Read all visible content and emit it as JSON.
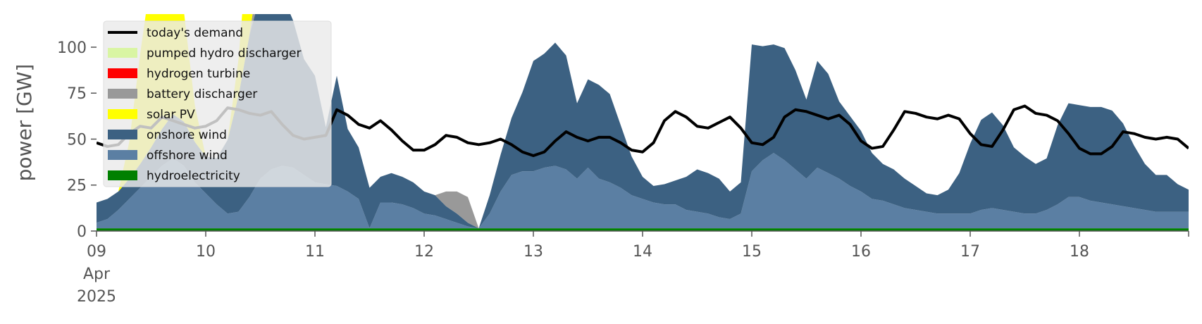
{
  "chart_data": {
    "type": "area",
    "ylabel": "power [GW]",
    "ylim": [
      0,
      118
    ],
    "yticks": [
      0,
      25,
      50,
      75,
      100
    ],
    "xlim": [
      0,
      10
    ],
    "x_ticks": [
      {
        "x": 0,
        "lines": [
          "09",
          "Apr",
          "2025"
        ]
      },
      {
        "x": 1,
        "lines": [
          "10"
        ]
      },
      {
        "x": 2,
        "lines": [
          "11"
        ]
      },
      {
        "x": 3,
        "lines": [
          "12"
        ]
      },
      {
        "x": 4,
        "lines": [
          "13"
        ]
      },
      {
        "x": 5,
        "lines": [
          "14"
        ]
      },
      {
        "x": 6,
        "lines": [
          "15"
        ]
      },
      {
        "x": 7,
        "lines": [
          "16"
        ]
      },
      {
        "x": 8,
        "lines": [
          "17"
        ]
      },
      {
        "x": 9,
        "lines": [
          "18"
        ]
      }
    ],
    "grid": false,
    "legend_position": "top-left",
    "x_days": [
      0,
      0.1,
      0.2,
      0.3,
      0.4,
      0.5,
      0.6,
      0.7,
      0.8,
      0.9,
      1.0,
      1.1,
      1.2,
      1.3,
      1.4,
      1.5,
      1.6,
      1.7,
      1.8,
      1.9,
      2.0,
      2.1,
      2.2,
      2.3,
      2.4,
      2.5,
      2.6,
      2.7,
      2.8,
      2.9,
      3.0,
      3.1,
      3.2,
      3.3,
      3.4,
      3.5,
      3.6,
      3.7,
      3.8,
      3.9,
      4.0,
      4.1,
      4.2,
      4.3,
      4.4,
      4.5,
      4.6,
      4.7,
      4.8,
      4.9,
      5.0,
      5.1,
      5.2,
      5.3,
      5.4,
      5.5,
      5.6,
      5.7,
      5.8,
      5.9,
      6.0,
      6.1,
      6.2,
      6.3,
      6.4,
      6.5,
      6.6,
      6.7,
      6.8,
      6.9,
      7.0,
      7.1,
      7.2,
      7.3,
      7.4,
      7.5,
      7.6,
      7.7,
      7.8,
      7.9,
      8.0,
      8.1,
      8.2,
      8.3,
      8.4,
      8.5,
      8.6,
      8.7,
      8.8,
      8.9,
      9.0,
      9.1,
      9.2,
      9.3,
      9.4,
      9.5,
      9.6,
      9.7,
      9.8,
      9.9,
      10.0
    ],
    "series": [
      {
        "name": "hydroelectricity",
        "color": "#008000",
        "values": [
          1.5,
          1.5,
          1.5,
          1.5,
          1.5,
          1.5,
          1.5,
          1.5,
          1.5,
          1.5,
          1.5,
          1.5,
          1.5,
          1.5,
          1.5,
          1.5,
          1.5,
          1.5,
          1.5,
          1.5,
          1.5,
          1.5,
          1.5,
          1.5,
          1.5,
          1.5,
          1.5,
          1.5,
          1.5,
          1.5,
          1.5,
          1.5,
          1.5,
          1.5,
          1.5,
          1.5,
          1.5,
          1.5,
          1.5,
          1.5,
          1.5,
          1.5,
          1.5,
          1.5,
          1.5,
          1.5,
          1.5,
          1.5,
          1.5,
          1.5,
          1.5,
          1.5,
          1.5,
          1.5,
          1.5,
          1.5,
          1.5,
          1.5,
          1.5,
          1.5,
          1.5,
          1.5,
          1.5,
          1.5,
          1.5,
          1.5,
          1.5,
          1.5,
          1.5,
          1.5,
          1.5,
          1.5,
          1.5,
          1.5,
          1.5,
          1.5,
          1.5,
          1.5,
          1.5,
          1.5,
          1.5,
          1.5,
          1.5,
          1.5,
          1.5,
          1.5,
          1.5,
          1.5,
          1.5,
          1.5,
          1.5,
          1.5,
          1.5,
          1.5,
          1.5,
          1.5,
          1.5,
          1.5,
          1.5,
          1.5,
          1.5
        ]
      },
      {
        "name": "offshore wind",
        "color": "#5b7fa3",
        "values": [
          3,
          5,
          10,
          16,
          22,
          28,
          34,
          38,
          34,
          25,
          19,
          13,
          8,
          9,
          17,
          27,
          32,
          34,
          33,
          29,
          25,
          24,
          23,
          20,
          16,
          0,
          14,
          14,
          13,
          11,
          8,
          7,
          5,
          3,
          1,
          0,
          8,
          20,
          29,
          31,
          31,
          33,
          34,
          32,
          27,
          33,
          27,
          25,
          22,
          18,
          16,
          14,
          13,
          13,
          10,
          9,
          8,
          6,
          5,
          8,
          31,
          37,
          41,
          37,
          32,
          27,
          33,
          30,
          27,
          23,
          20,
          16,
          15,
          13,
          11,
          10,
          9,
          8,
          8,
          8,
          8,
          10,
          11,
          10,
          9,
          8,
          8,
          10,
          13,
          17,
          17,
          15,
          14,
          13,
          12,
          11,
          10,
          9,
          9,
          9,
          9
        ]
      },
      {
        "name": "onshore wind",
        "color": "#3c6182",
        "values": [
          11,
          11,
          10,
          11,
          13,
          16,
          20,
          24,
          24,
          22,
          20,
          25,
          40,
          63,
          88,
          100,
          99,
          93,
          80,
          63,
          58,
          31,
          60,
          34,
          28,
          22,
          14,
          16,
          15,
          14,
          12,
          11,
          7,
          5,
          2,
          0,
          10,
          20,
          31,
          43,
          60,
          62,
          67,
          62,
          41,
          48,
          51,
          48,
          34,
          21,
          12,
          9,
          11,
          13,
          18,
          23,
          22,
          21,
          15,
          17,
          69,
          62,
          59,
          61,
          54,
          43,
          58,
          54,
          42,
          38,
          33,
          25,
          20,
          19,
          16,
          13,
          10,
          10,
          13,
          22,
          38,
          49,
          52,
          46,
          35,
          31,
          27,
          28,
          43,
          51,
          50,
          51,
          52,
          51,
          45,
          34,
          25,
          20,
          20,
          15,
          12
        ]
      },
      {
        "name": "battery discharger",
        "color": "#999999",
        "values": [
          0,
          0,
          0,
          0,
          0,
          0,
          0,
          0,
          0,
          0,
          0,
          0,
          0,
          0,
          0,
          18,
          0,
          0,
          0,
          0,
          0,
          0,
          0,
          0,
          0,
          0,
          0,
          0,
          0,
          0,
          0,
          0,
          8,
          12,
          14,
          0,
          0,
          0,
          0,
          0,
          0,
          0,
          0,
          0,
          0,
          0,
          0,
          0,
          0,
          0,
          0,
          0,
          0,
          0,
          0,
          0,
          0,
          0,
          0,
          0,
          0,
          0,
          0,
          0,
          0,
          0,
          0,
          0,
          0,
          0,
          0,
          0,
          0,
          0,
          0,
          0,
          0,
          0,
          0,
          0,
          0,
          0,
          0,
          0,
          0,
          0,
          0,
          0,
          0,
          0,
          0,
          0,
          0,
          0,
          0,
          0,
          0,
          0,
          0,
          0,
          0
        ]
      },
      {
        "name": "solar PV",
        "color": "#ffff00",
        "values": [
          0,
          0,
          0,
          20,
          60,
          93,
          110,
          98,
          60,
          20,
          0,
          0,
          0,
          20,
          60,
          0,
          0,
          0,
          0,
          0,
          0,
          0,
          0,
          0,
          0,
          0,
          0,
          0,
          0,
          0,
          0,
          0,
          0,
          0,
          0,
          0,
          0,
          0,
          0,
          0,
          0,
          0,
          0,
          0,
          0,
          0,
          0,
          0,
          0,
          0,
          0,
          0,
          0,
          0,
          0,
          0,
          0,
          0,
          0,
          0,
          0,
          0,
          0,
          0,
          0,
          0,
          0,
          0,
          0,
          0,
          0,
          0,
          0,
          0,
          0,
          0,
          0,
          0,
          0,
          0,
          0,
          0,
          0,
          0,
          0,
          0,
          0,
          0,
          0,
          0,
          0,
          0,
          0,
          0,
          0,
          0,
          0,
          0,
          0,
          0,
          0
        ]
      },
      {
        "name": "hydrogen turbine",
        "color": "#ff0000",
        "values": [
          0,
          0,
          0,
          0,
          0,
          0,
          0,
          0,
          0,
          0,
          0,
          0,
          0,
          0,
          0,
          0,
          0,
          0,
          0,
          0,
          0,
          0,
          0,
          0,
          0,
          0,
          0,
          0,
          0,
          0,
          0,
          0,
          0,
          0,
          0,
          0,
          0,
          0,
          0,
          0,
          0,
          0,
          0,
          0,
          0,
          0,
          0,
          0,
          0,
          0,
          0,
          0,
          0,
          0,
          0,
          0,
          0,
          0,
          0,
          0,
          0,
          0,
          0,
          0,
          0,
          0,
          0,
          0,
          0,
          0,
          0,
          0,
          0,
          0,
          0,
          0,
          0,
          0,
          0,
          0,
          0,
          0,
          0,
          0,
          0,
          0,
          0,
          0,
          0,
          0,
          0,
          0,
          0,
          0,
          0,
          0,
          0,
          0,
          0,
          0,
          0
        ]
      },
      {
        "name": "pumped hydro discharger",
        "color": "#d9f5a3",
        "values": [
          0,
          0,
          0,
          0,
          0,
          0,
          0,
          0,
          0,
          0,
          0,
          0,
          0,
          0,
          0,
          0,
          0,
          0,
          0,
          0,
          0,
          0,
          0,
          0,
          0,
          0,
          0,
          0,
          0,
          0,
          0,
          0,
          0,
          0,
          0,
          0,
          0,
          0,
          0,
          0,
          0,
          0,
          0,
          0,
          0,
          0,
          0,
          0,
          0,
          0,
          0,
          0,
          0,
          0,
          0,
          0,
          0,
          0,
          0,
          0,
          0,
          0,
          0,
          0,
          0,
          0,
          0,
          0,
          0,
          0,
          0,
          0,
          0,
          0,
          0,
          0,
          0,
          0,
          0,
          0,
          0,
          0,
          0,
          0,
          0,
          0,
          0,
          0,
          0,
          0,
          0,
          0,
          0,
          0,
          0,
          0,
          0,
          0,
          0,
          0,
          0
        ]
      }
    ],
    "overlay": {
      "x": [
        0,
        0.05,
        0.08,
        0.15,
        0.25,
        0.35,
        0.45,
        0.6,
        0.7,
        0.85,
        1.0,
        1.15,
        1.3,
        1.45,
        1.6,
        1.75,
        1.9,
        2.0,
        2.1,
        2.2,
        2.3,
        2.4,
        2.6,
        2.7,
        2.8,
        2.9,
        3.0,
        3.1,
        3.2,
        3.3,
        3.4,
        3.5,
        3.6,
        3.7,
        3.8,
        3.9,
        4.0,
        4.1,
        4.2,
        4.3,
        4.4,
        4.5,
        4.6,
        4.7,
        4.8,
        4.9,
        5.0,
        5.1,
        5.2,
        5.3,
        5.4,
        5.5,
        5.6,
        5.7,
        5.8,
        5.9,
        6.0,
        6.1,
        6.2,
        6.3,
        6.4,
        6.5,
        6.6,
        6.7,
        6.8,
        6.9,
        7.0,
        7.1,
        7.2,
        7.3,
        7.4,
        7.5,
        7.6,
        7.7,
        7.8,
        7.9,
        8.0,
        8.1,
        8.2,
        8.3,
        8.4,
        8.5,
        8.6,
        8.7,
        8.8,
        8.9,
        9.0,
        9.1,
        9.2,
        9.3,
        9.4,
        9.5,
        9.6,
        9.7,
        9.8,
        9.9,
        10.0
      ],
      "extra": [
        {
          "series": "hydrogen turbine",
          "segments": [
            [
              0,
              0.2
            ],
            [
              2.95,
              3.2
            ],
            [
              4.95,
              5.35
            ],
            [
              5.8,
              5.9
            ]
          ]
        },
        {
          "series": "pumped hydro discharger",
          "segments": [
            [
              3.1,
              3.35
            ],
            [
              5.95,
              6.15
            ]
          ]
        }
      ]
    },
    "demand": {
      "name": "today's demand",
      "color": "#000000",
      "x": [
        0,
        0.1,
        0.2,
        0.3,
        0.4,
        0.5,
        0.6,
        0.7,
        0.8,
        0.9,
        1.0,
        1.1,
        1.2,
        1.3,
        1.4,
        1.5,
        1.6,
        1.7,
        1.8,
        1.9,
        2.0,
        2.1,
        2.2,
        2.3,
        2.4,
        2.5,
        2.6,
        2.7,
        2.8,
        2.9,
        3.0,
        3.1,
        3.2,
        3.3,
        3.4,
        3.5,
        3.6,
        3.7,
        3.8,
        3.9,
        4.0,
        4.1,
        4.2,
        4.3,
        4.4,
        4.5,
        4.6,
        4.7,
        4.8,
        4.9,
        5.0,
        5.1,
        5.2,
        5.3,
        5.4,
        5.5,
        5.6,
        5.7,
        5.8,
        5.9,
        6.0,
        6.1,
        6.2,
        6.3,
        6.4,
        6.5,
        6.6,
        6.7,
        6.8,
        6.9,
        7.0,
        7.1,
        7.2,
        7.3,
        7.4,
        7.5,
        7.6,
        7.7,
        7.8,
        7.9,
        8.0,
        8.1,
        8.2,
        8.3,
        8.4,
        8.5,
        8.6,
        8.7,
        8.8,
        8.9,
        9.0,
        9.1,
        9.2,
        9.3,
        9.4,
        9.5,
        9.6,
        9.7,
        9.8,
        9.9,
        10.0
      ],
      "values": [
        48,
        46,
        47,
        53,
        57,
        56,
        62,
        60,
        58,
        56,
        57,
        60,
        67,
        66,
        64,
        63,
        65,
        58,
        52,
        50,
        51,
        52,
        66,
        63,
        58,
        56,
        60,
        55,
        49,
        44,
        44,
        47,
        52,
        51,
        48,
        47,
        48,
        50,
        47,
        43,
        41,
        43,
        49,
        54,
        51,
        49,
        51,
        51,
        48,
        44,
        43,
        48,
        60,
        65,
        62,
        57,
        56,
        59,
        62,
        56,
        48,
        47,
        51,
        62,
        66,
        65,
        63,
        61,
        63,
        58,
        49,
        45,
        46,
        55,
        65,
        64,
        62,
        61,
        63,
        61,
        53,
        47,
        46,
        55,
        66,
        68,
        64,
        63,
        60,
        53,
        45,
        42,
        42,
        46,
        54,
        53,
        51,
        50,
        51,
        50,
        45
      ]
    },
    "legend": [
      {
        "label": "today's demand",
        "color": "#000000",
        "kind": "line"
      },
      {
        "label": "pumped hydro discharger",
        "color": "#d9f5a3",
        "kind": "patch"
      },
      {
        "label": "hydrogen turbine",
        "color": "#ff0000",
        "kind": "patch"
      },
      {
        "label": "battery discharger",
        "color": "#999999",
        "kind": "patch"
      },
      {
        "label": "solar PV",
        "color": "#ffff00",
        "kind": "patch"
      },
      {
        "label": "onshore wind",
        "color": "#3c6182",
        "kind": "patch"
      },
      {
        "label": "offshore wind",
        "color": "#5b7fa3",
        "kind": "patch"
      },
      {
        "label": "hydroelectricity",
        "color": "#008000",
        "kind": "patch"
      }
    ]
  }
}
